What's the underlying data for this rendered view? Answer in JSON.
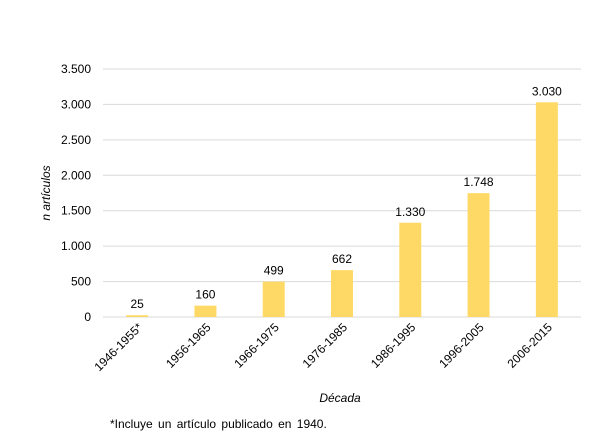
{
  "chart_data": {
    "type": "bar",
    "categories": [
      "1946-1955*",
      "1956-1965",
      "1966-1975",
      "1976-1985",
      "1986-1995",
      "1996-2005",
      "2006-2015"
    ],
    "values": [
      25,
      160,
      499,
      662,
      1330,
      1748,
      3030
    ],
    "data_labels": [
      "25",
      "160",
      "499",
      "662",
      "1.330",
      "1.748",
      "3.030"
    ],
    "yticks": [
      0,
      500,
      1000,
      1500,
      2000,
      2500,
      3000,
      3500
    ],
    "ytick_labels": [
      "0",
      "500",
      "1.000",
      "1.500",
      "2.000",
      "2.500",
      "3.000",
      "3.500"
    ],
    "ylim": [
      0,
      3500
    ],
    "xlabel": "Década",
    "ylabel": "n artículos",
    "grid": true,
    "legend": "none",
    "bar_color": "#FFD966",
    "grid_color": "#D9D9D9"
  },
  "footnote": "*Incluye un artículo publicado en 1940."
}
